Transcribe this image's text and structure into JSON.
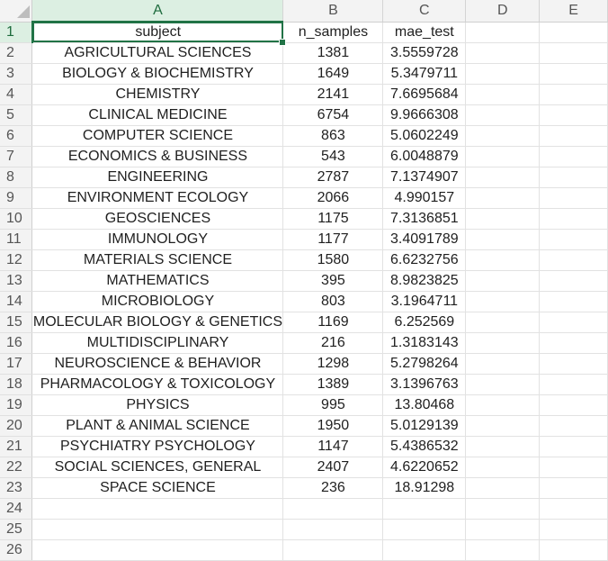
{
  "sheet": {
    "columns": [
      "A",
      "B",
      "C",
      "D",
      "E"
    ],
    "active_cell": "A1",
    "header_row": {
      "row": "1",
      "cells": [
        "subject",
        "n_samples",
        "mae_test",
        "",
        ""
      ]
    },
    "data_rows": [
      {
        "row": "2",
        "cells": [
          "AGRICULTURAL SCIENCES",
          "1381",
          "3.5559728",
          "",
          ""
        ]
      },
      {
        "row": "3",
        "cells": [
          "BIOLOGY & BIOCHEMISTRY",
          "1649",
          "5.3479711",
          "",
          ""
        ]
      },
      {
        "row": "4",
        "cells": [
          "CHEMISTRY",
          "2141",
          "7.6695684",
          "",
          ""
        ]
      },
      {
        "row": "5",
        "cells": [
          "CLINICAL MEDICINE",
          "6754",
          "9.9666308",
          "",
          ""
        ]
      },
      {
        "row": "6",
        "cells": [
          "COMPUTER SCIENCE",
          "863",
          "5.0602249",
          "",
          ""
        ]
      },
      {
        "row": "7",
        "cells": [
          "ECONOMICS & BUSINESS",
          "543",
          "6.0048879",
          "",
          ""
        ]
      },
      {
        "row": "8",
        "cells": [
          "ENGINEERING",
          "2787",
          "7.1374907",
          "",
          ""
        ]
      },
      {
        "row": "9",
        "cells": [
          "ENVIRONMENT ECOLOGY",
          "2066",
          "4.990157",
          "",
          ""
        ]
      },
      {
        "row": "10",
        "cells": [
          "GEOSCIENCES",
          "1175",
          "7.3136851",
          "",
          ""
        ]
      },
      {
        "row": "11",
        "cells": [
          "IMMUNOLOGY",
          "1177",
          "3.4091789",
          "",
          ""
        ]
      },
      {
        "row": "12",
        "cells": [
          "MATERIALS SCIENCE",
          "1580",
          "6.6232756",
          "",
          ""
        ]
      },
      {
        "row": "13",
        "cells": [
          "MATHEMATICS",
          "395",
          "8.9823825",
          "",
          ""
        ]
      },
      {
        "row": "14",
        "cells": [
          "MICROBIOLOGY",
          "803",
          "3.1964711",
          "",
          ""
        ]
      },
      {
        "row": "15",
        "cells": [
          "MOLECULAR BIOLOGY & GENETICS",
          "1169",
          "6.252569",
          "",
          ""
        ]
      },
      {
        "row": "16",
        "cells": [
          "MULTIDISCIPLINARY",
          "216",
          "1.3183143",
          "",
          ""
        ]
      },
      {
        "row": "17",
        "cells": [
          "NEUROSCIENCE & BEHAVIOR",
          "1298",
          "5.2798264",
          "",
          ""
        ]
      },
      {
        "row": "18",
        "cells": [
          "PHARMACOLOGY & TOXICOLOGY",
          "1389",
          "3.1396763",
          "",
          ""
        ]
      },
      {
        "row": "19",
        "cells": [
          "PHYSICS",
          "995",
          "13.80468",
          "",
          ""
        ]
      },
      {
        "row": "20",
        "cells": [
          "PLANT & ANIMAL SCIENCE",
          "1950",
          "5.0129139",
          "",
          ""
        ]
      },
      {
        "row": "21",
        "cells": [
          "PSYCHIATRY PSYCHOLOGY",
          "1147",
          "5.4386532",
          "",
          ""
        ]
      },
      {
        "row": "22",
        "cells": [
          "SOCIAL SCIENCES, GENERAL",
          "2407",
          "4.6220652",
          "",
          ""
        ]
      },
      {
        "row": "23",
        "cells": [
          "SPACE SCIENCE",
          "236",
          "18.91298",
          "",
          ""
        ]
      }
    ],
    "empty_rows": [
      "24",
      "25",
      "26"
    ],
    "colors": {
      "selection": "#217346",
      "header_bg": "#f3f3f3",
      "gridline": "#e2e2e2"
    }
  }
}
